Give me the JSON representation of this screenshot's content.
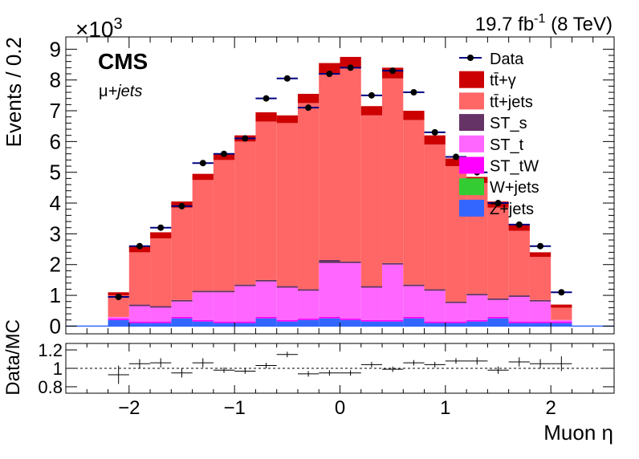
{
  "header": {
    "cms_label": "CMS",
    "channel_mu": "μ",
    "channel_rest": "+jets",
    "lumi": "19.7 fb",
    "lumi_exp": "-1",
    "energy": " (8 TeV)",
    "scale_base": "×10",
    "scale_exp": "3"
  },
  "colors": {
    "ttgamma": "#cc0000",
    "ttjets": "#ff6666",
    "st_s": "#663366",
    "st_t": "#ff66ff",
    "st_tw": "#ff00ff",
    "wjets": "#33cc33",
    "zjets": "#3366ff",
    "data_marker": "#000000",
    "data_errorbar": "#000080"
  },
  "chart_data": [
    {
      "type": "bar",
      "stacked": true,
      "ylabel": "Events / 0.2",
      "xlabel": "",
      "y_scale_note": "×10^3",
      "xlim": [
        -2.6,
        2.6
      ],
      "ylim": [
        -0.25,
        9.4
      ],
      "yticks": [
        0,
        1,
        2,
        3,
        4,
        5,
        6,
        7,
        8,
        9
      ],
      "xticks": [
        -2,
        -1,
        0,
        1,
        2
      ],
      "bin_edges": [
        -2.2,
        -2.0,
        -1.8,
        -1.6,
        -1.4,
        -1.2,
        -1.0,
        -0.8,
        -0.6,
        -0.4,
        -0.2,
        0.0,
        0.2,
        0.4,
        0.6,
        0.8,
        1.0,
        1.2,
        1.4,
        1.6,
        1.8,
        2.0,
        2.2
      ],
      "series": [
        {
          "name": "Z+jets",
          "color_key": "zjets",
          "values": [
            0.2,
            0.1,
            0.1,
            0.25,
            0.15,
            0.1,
            0.1,
            0.25,
            0.15,
            0.2,
            0.25,
            0.2,
            0.15,
            0.15,
            0.25,
            0.1,
            0.1,
            0.15,
            0.25,
            0.1,
            0.1,
            0.1
          ]
        },
        {
          "name": "W+jets",
          "color_key": "wjets",
          "values": [
            0,
            0,
            0,
            0,
            0,
            0,
            0,
            0,
            0,
            0,
            0,
            0,
            0,
            0,
            0,
            0,
            0,
            0,
            0,
            0,
            0,
            0
          ]
        },
        {
          "name": "ST_tW",
          "color_key": "st_tw",
          "values": [
            0.05,
            0.05,
            0.05,
            0.05,
            0.05,
            0.05,
            0.05,
            0.05,
            0.05,
            0.05,
            0.05,
            0.05,
            0.05,
            0.05,
            0.05,
            0.05,
            0.05,
            0.05,
            0.05,
            0.05,
            0.05,
            0.05
          ]
        },
        {
          "name": "ST_t",
          "color_key": "st_t",
          "values": [
            0.05,
            0.5,
            0.45,
            0.5,
            0.9,
            0.95,
            1.15,
            1.15,
            1.05,
            0.9,
            1.75,
            1.8,
            1.05,
            1.8,
            1.0,
            1.0,
            0.6,
            0.8,
            0.55,
            0.8,
            0.65,
            0.05
          ]
        },
        {
          "name": "ST_s",
          "color_key": "st_s",
          "values": [
            0,
            0.05,
            0.05,
            0.05,
            0.05,
            0.05,
            0.05,
            0.05,
            0.05,
            0.05,
            0.1,
            0.05,
            0.05,
            0.05,
            0.05,
            0.05,
            0.05,
            0.05,
            0.05,
            0.05,
            0.05,
            0
          ]
        },
        {
          "name": "tt̄+jets",
          "color_key": "ttjets",
          "values": [
            0.7,
            1.7,
            2.2,
            3.0,
            3.6,
            4.25,
            4.65,
            5.15,
            5.3,
            6.05,
            6.05,
            6.3,
            5.55,
            6.0,
            5.35,
            4.7,
            4.4,
            3.6,
            2.95,
            2.1,
            1.4,
            0.4
          ]
        },
        {
          "name": "tt̄+γ",
          "color_key": "ttgamma",
          "values": [
            0.1,
            0.2,
            0.2,
            0.2,
            0.2,
            0.2,
            0.2,
            0.3,
            0.25,
            0.3,
            0.35,
            0.35,
            0.3,
            0.35,
            0.3,
            0.3,
            0.25,
            0.2,
            0.2,
            0.2,
            0.15,
            0.1
          ]
        }
      ],
      "data": {
        "name": "Data",
        "x": [
          -2.1,
          -1.9,
          -1.7,
          -1.5,
          -1.3,
          -1.1,
          -0.9,
          -0.7,
          -0.5,
          -0.3,
          -0.1,
          0.1,
          0.3,
          0.5,
          0.7,
          0.9,
          1.1,
          1.3,
          1.5,
          1.7,
          1.9,
          2.1
        ],
        "y": [
          0.95,
          2.6,
          3.2,
          3.9,
          5.3,
          5.6,
          6.1,
          7.4,
          8.05,
          7.1,
          8.2,
          8.4,
          7.5,
          8.3,
          7.6,
          6.3,
          5.5,
          5.0,
          4.0,
          3.3,
          2.6,
          1.1
        ]
      },
      "legend": {
        "placement": "top-right",
        "entries": [
          {
            "label": "Data",
            "kind": "marker",
            "color_key": "data_marker"
          },
          {
            "label": "tt̄+γ",
            "kind": "box",
            "color_key": "ttgamma"
          },
          {
            "label": "tt̄+jets",
            "kind": "box",
            "color_key": "ttjets"
          },
          {
            "label": "ST_s",
            "kind": "box",
            "color_key": "st_s"
          },
          {
            "label": "ST_t",
            "kind": "box",
            "color_key": "st_t"
          },
          {
            "label": "ST_tW",
            "kind": "box",
            "color_key": "st_tw"
          },
          {
            "label": "W+jets",
            "kind": "box",
            "color_key": "wjets"
          },
          {
            "label": "Z+jets",
            "kind": "box",
            "color_key": "zjets"
          }
        ]
      }
    },
    {
      "type": "scatter",
      "ylabel": "Data/MC",
      "xlabel": "Muon η",
      "xlim": [
        -2.6,
        2.6
      ],
      "ylim": [
        0.73,
        1.27
      ],
      "yticks": [
        0.8,
        1,
        1.2
      ],
      "ytick_labels": [
        "0.8",
        "1",
        "1.2"
      ],
      "xticks": [
        -2,
        -1,
        0,
        1,
        2
      ],
      "xtick_labels": [
        "−2",
        "−1",
        "0",
        "1",
        "2"
      ],
      "reference_line": 1,
      "x": [
        -2.1,
        -1.9,
        -1.7,
        -1.5,
        -1.3,
        -1.1,
        -0.9,
        -0.7,
        -0.5,
        -0.3,
        -0.1,
        0.1,
        0.3,
        0.5,
        0.7,
        0.9,
        1.1,
        1.3,
        1.5,
        1.7,
        1.9,
        2.1
      ],
      "y": [
        0.93,
        1.05,
        1.06,
        0.95,
        1.06,
        0.98,
        0.97,
        1.03,
        1.15,
        0.94,
        0.95,
        0.95,
        1.04,
        0.99,
        1.06,
        1.04,
        1.08,
        1.08,
        0.98,
        1.07,
        1.05,
        1.05
      ],
      "yerr": [
        0.1,
        0.05,
        0.05,
        0.05,
        0.05,
        0.03,
        0.03,
        0.03,
        0.03,
        0.03,
        0.03,
        0.03,
        0.03,
        0.03,
        0.03,
        0.03,
        0.03,
        0.04,
        0.04,
        0.05,
        0.05,
        0.08
      ]
    }
  ]
}
